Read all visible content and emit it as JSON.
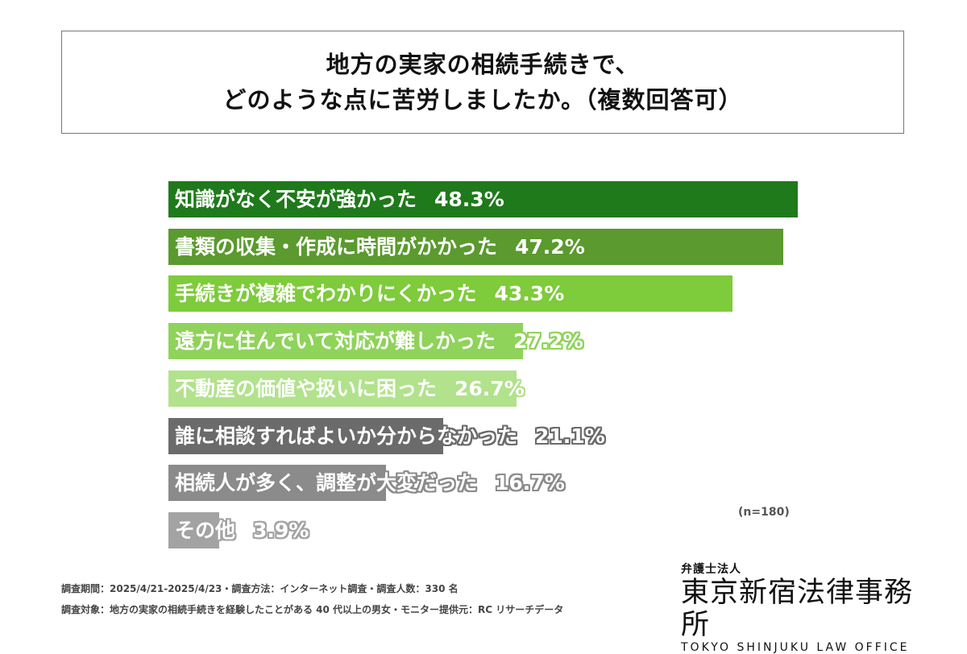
{
  "title_lines": [
    "地方の実家の相続手続きで、",
    "どのような点に苦労しましたか。（複数回答可）"
  ],
  "chart_data": {
    "type": "bar",
    "orientation": "horizontal",
    "title": "地方の実家の相続手続きで、どのような点に苦労しましたか。（複数回答可）",
    "unit": "%",
    "categories": [
      "知識がなく不安が強かった",
      "書類の収集・作成に時間がかかった",
      "手続きが複雑でわかりにくかった",
      "遠方に住んでいて対応が難しかった",
      "不動産の価値や扱いに困った",
      "誰に相談すればよいか分からなかった",
      "相続人が多く、調整が大変だった",
      "その他"
    ],
    "values": [
      48.3,
      47.2,
      43.3,
      27.2,
      26.7,
      21.1,
      16.7,
      3.9
    ],
    "value_labels": [
      "48.3%",
      "47.2%",
      "43.3%",
      "27.2%",
      "26.7%",
      "21.1%",
      "16.7%",
      "3.9%"
    ],
    "colors": [
      "#1f7a1b",
      "#5b9a2e",
      "#7ecb3b",
      "#8fd35a",
      "#b2e28c",
      "#6b6b6b",
      "#8b8b8b",
      "#a3a3a3"
    ],
    "sample_note": "(n=180)",
    "grid": false,
    "legend": "none"
  },
  "footer": {
    "line1": "調査期間：2025/4/21-2025/4/23・調査方法：インターネット調査・調査人数：330 名",
    "line2": "調査対象：地方の実家の相続手続きを経験したことがある 40 代以上の男女・モニター提供元：RC リサーチデータ"
  },
  "logo": {
    "small": "弁護士法人",
    "main": "東京新宿法律事務所",
    "en": "TOKYO SHINJUKU LAW OFFICE"
  }
}
